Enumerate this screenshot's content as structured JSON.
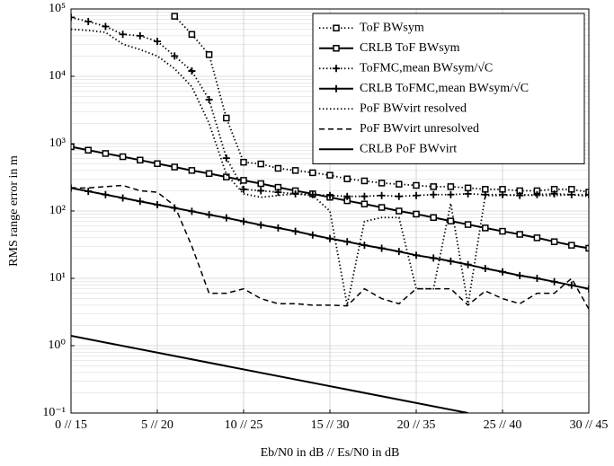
{
  "chart_data": {
    "type": "line",
    "x_label": "Eb/N0 in dB // Es/N0 in dB",
    "y_label": "RMS range error in m",
    "log_y": true,
    "grid": true,
    "legend": "upper right",
    "xlim": [
      0,
      30
    ],
    "xticks": [
      {
        "value": 0,
        "label": "0 // 15"
      },
      {
        "value": 5,
        "label": "5 // 20"
      },
      {
        "value": 10,
        "label": "10 // 25"
      },
      {
        "value": 15,
        "label": "15 // 30"
      },
      {
        "value": 20,
        "label": "20 // 35"
      },
      {
        "value": 25,
        "label": "25 // 40"
      },
      {
        "value": 30,
        "label": "30 // 45"
      }
    ],
    "ylim": [
      0.1,
      100000
    ],
    "yticks": [
      {
        "value": 0.1,
        "label": "10⁻¹"
      },
      {
        "value": 1,
        "label": "10⁰"
      },
      {
        "value": 10,
        "label": "10¹"
      },
      {
        "value": 100,
        "label": "10²"
      },
      {
        "value": 1000,
        "label": "10³"
      },
      {
        "value": 10000,
        "label": "10⁴"
      },
      {
        "value": 100000,
        "label": "10⁵"
      }
    ],
    "x": [
      0,
      1,
      2,
      3,
      4,
      5,
      6,
      7,
      8,
      9,
      10,
      11,
      12,
      13,
      14,
      15,
      16,
      17,
      18,
      19,
      20,
      21,
      22,
      23,
      24,
      25,
      26,
      27,
      28,
      29,
      30
    ],
    "series": [
      {
        "name": "ToF BWsym",
        "color": "#000000",
        "dash": "dotted",
        "marker": "square",
        "values": [
          null,
          null,
          null,
          null,
          null,
          null,
          78000,
          42000,
          21000,
          2400,
          530,
          500,
          430,
          400,
          370,
          340,
          300,
          280,
          260,
          250,
          240,
          230,
          230,
          220,
          210,
          210,
          200,
          200,
          210,
          210,
          190
        ]
      },
      {
        "name": "CRLB ToF BWsym",
        "color": "#000000",
        "dash": "solid",
        "marker": "square",
        "values": [
          900,
          800,
          715,
          640,
          570,
          505,
          450,
          400,
          360,
          320,
          285,
          255,
          225,
          200,
          180,
          160,
          142,
          127,
          113,
          100,
          90,
          80,
          71,
          63,
          56,
          50,
          45,
          40,
          35,
          31,
          28
        ]
      },
      {
        "name": "ToFMC,mean BWsym/√C",
        "color": "#000000",
        "dash": "dotted",
        "marker": "plus",
        "values": [
          75000,
          65000,
          55000,
          42000,
          40000,
          33000,
          20000,
          12000,
          4500,
          610,
          210,
          200,
          190,
          180,
          175,
          170,
          165,
          165,
          170,
          165,
          170,
          175,
          175,
          180,
          175,
          175,
          170,
          175,
          180,
          175,
          175
        ]
      },
      {
        "name": "CRLB ToFMC,mean BWsym/√C",
        "color": "#000000",
        "dash": "solid",
        "marker": "plus",
        "values": [
          220,
          196,
          175,
          156,
          139,
          124,
          111,
          99,
          88,
          79,
          70,
          62,
          56,
          50,
          44,
          39,
          35,
          31,
          28,
          25,
          22,
          20,
          18,
          16,
          14,
          12.5,
          11,
          10,
          8.9,
          7.9,
          7
        ]
      },
      {
        "name": "PoF BWvirt resolved",
        "color": "#000000",
        "dash": "dotted",
        "marker": "none",
        "values": [
          50000,
          48000,
          45000,
          30000,
          25000,
          20000,
          13000,
          7000,
          2000,
          350,
          180,
          160,
          170,
          180,
          170,
          100,
          4,
          70,
          80,
          80,
          7,
          7,
          130,
          4,
          170,
          170,
          175,
          170,
          170,
          175,
          165
        ]
      },
      {
        "name": "PoF BWvirt unresolved",
        "color": "#000000",
        "dash": "dashed",
        "marker": "none",
        "values": [
          220,
          220,
          230,
          240,
          200,
          190,
          120,
          30,
          6,
          6,
          7,
          5,
          4.2,
          4.2,
          4,
          4,
          3.9,
          7,
          5,
          4.2,
          7,
          7,
          7,
          4,
          6.5,
          5,
          4.2,
          6,
          6,
          10,
          3.5
        ]
      },
      {
        "name": "CRLB PoF BWvirt",
        "color": "#000000",
        "dash": "solid",
        "marker": "none",
        "x": [
          0,
          23
        ],
        "values": [
          1.4,
          0.1
        ]
      }
    ]
  }
}
